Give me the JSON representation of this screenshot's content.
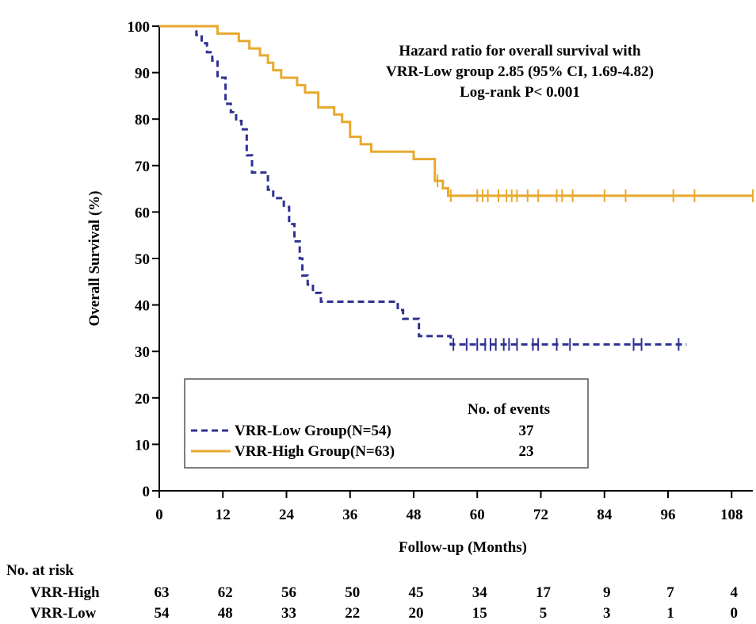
{
  "chart_data": {
    "type": "line",
    "subtype": "kaplan-meier",
    "xlabel": "Follow-up (Months)",
    "ylabel": "Overall Survival (%)",
    "xlim": [
      0,
      112
    ],
    "ylim": [
      0,
      100
    ],
    "xticks": [
      0,
      12,
      24,
      36,
      48,
      60,
      72,
      84,
      96,
      108
    ],
    "yticks": [
      0,
      10,
      20,
      30,
      40,
      50,
      60,
      70,
      80,
      90,
      100
    ],
    "annotation": [
      "Hazard ratio for overall survival with",
      "VRR-Low group 2.85 (95% CI, 1.69-4.82)",
      "Log-rank P< 0.001"
    ],
    "legend": {
      "header": "No. of events",
      "placement": "lower-left",
      "entries": [
        {
          "label": "VRR-Low Group(N=54)",
          "events": "37"
        },
        {
          "label": "VRR-High Group(N=63)",
          "events": "23"
        }
      ]
    },
    "series": [
      {
        "name": "VRR-Low Group(N=54)",
        "color": "#2e3192",
        "dash": true,
        "steps": [
          [
            0,
            100
          ],
          [
            7,
            98.1
          ],
          [
            8,
            96.3
          ],
          [
            9,
            94.4
          ],
          [
            10,
            92.6
          ],
          [
            11,
            88.9
          ],
          [
            12.5,
            83.3
          ],
          [
            13.5,
            81.5
          ],
          [
            14.5,
            79.6
          ],
          [
            15.5,
            77.8
          ],
          [
            16.5,
            72.2
          ],
          [
            17.5,
            68.5
          ],
          [
            20.5,
            64.8
          ],
          [
            21.5,
            63
          ],
          [
            23.5,
            61.1
          ],
          [
            24.5,
            57.4
          ],
          [
            25.5,
            53.7
          ],
          [
            26.5,
            50
          ],
          [
            27,
            46.3
          ],
          [
            28,
            44.4
          ],
          [
            29,
            42.6
          ],
          [
            30.5,
            40.7
          ],
          [
            45,
            38.9
          ],
          [
            46,
            37
          ],
          [
            49,
            33.3
          ],
          [
            55,
            31.5
          ],
          [
            99.5,
            31.5
          ]
        ],
        "censored": [
          55.5,
          58,
          60,
          61.5,
          62.5,
          63.5,
          65,
          66,
          67.5,
          70.5,
          71.5,
          75,
          77.5,
          89.5,
          91,
          98
        ]
      },
      {
        "name": "VRR-High Group(N=63)",
        "color": "#e8a92e",
        "dash": false,
        "steps": [
          [
            0,
            100
          ],
          [
            11,
            98.4
          ],
          [
            15,
            96.8
          ],
          [
            17,
            95.2
          ],
          [
            19,
            93.7
          ],
          [
            20.5,
            92.1
          ],
          [
            21.5,
            90.5
          ],
          [
            23,
            88.9
          ],
          [
            26,
            87.3
          ],
          [
            27.5,
            85.7
          ],
          [
            30,
            82.5
          ],
          [
            33,
            81
          ],
          [
            34.5,
            79.4
          ],
          [
            36,
            76.2
          ],
          [
            38,
            74.6
          ],
          [
            40,
            73
          ],
          [
            48,
            71.4
          ],
          [
            52,
            66.7
          ],
          [
            53.5,
            65.1
          ],
          [
            54.5,
            63.5
          ],
          [
            112,
            63.5
          ]
        ],
        "censored": [
          52.5,
          55,
          60,
          61,
          62,
          64,
          65.5,
          66.5,
          67.5,
          69.5,
          71.5,
          75,
          76,
          78,
          84,
          88,
          97,
          101,
          112
        ]
      }
    ],
    "risk_table": {
      "title": "No. at risk",
      "rows": [
        {
          "label": "VRR-High",
          "values": [
            "63",
            "62",
            "56",
            "50",
            "45",
            "34",
            "17",
            "9",
            "7",
            "4"
          ]
        },
        {
          "label": "VRR-Low",
          "values": [
            "54",
            "48",
            "33",
            "22",
            "20",
            "15",
            "5",
            "3",
            "1",
            "0"
          ]
        }
      ]
    }
  }
}
